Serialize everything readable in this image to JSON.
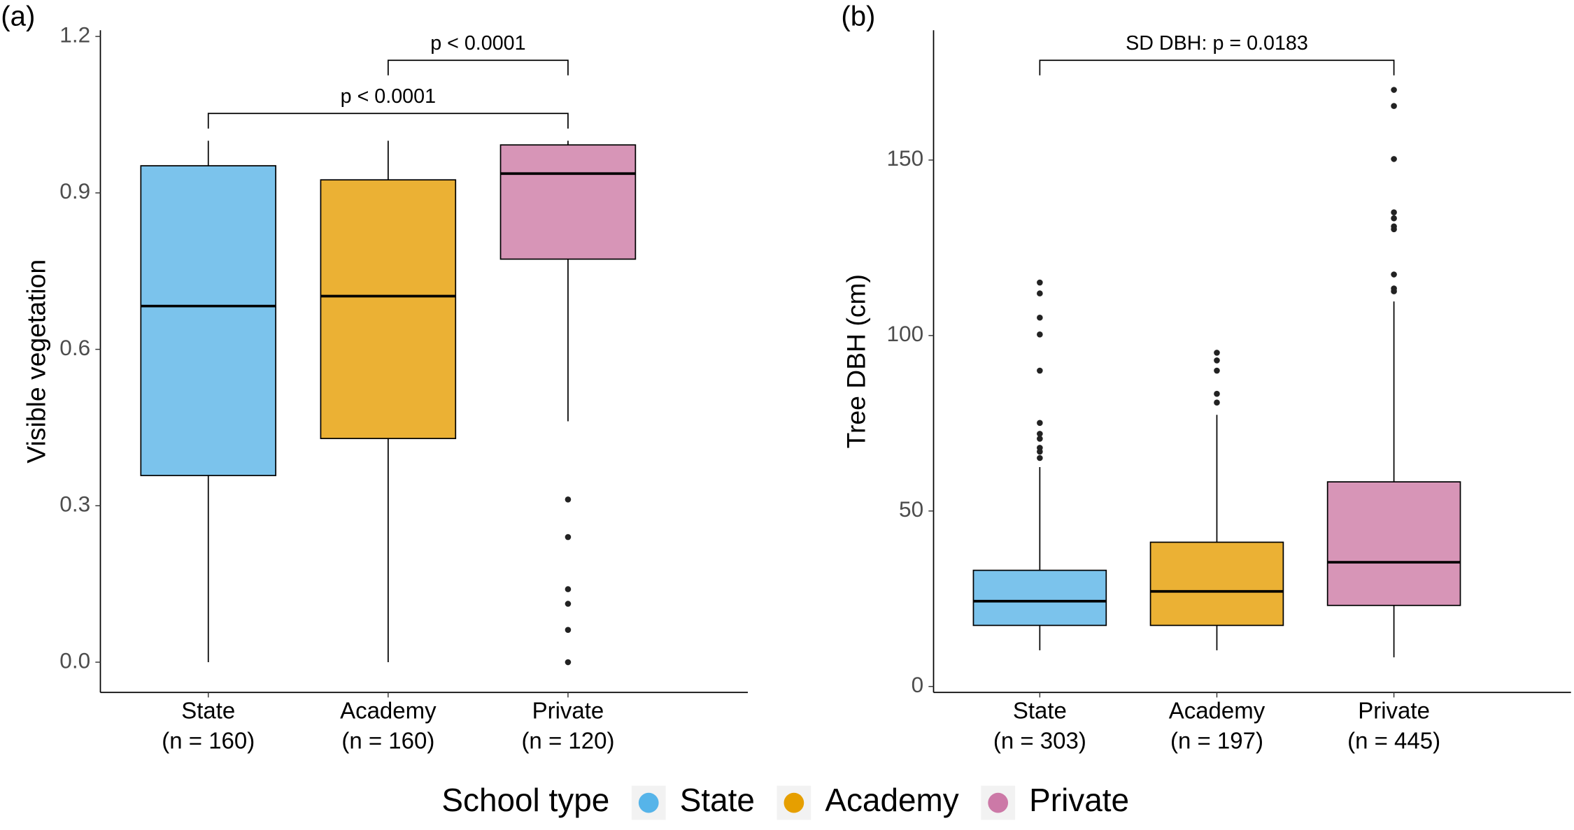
{
  "chart_data": [
    {
      "type": "box",
      "panel_label": "(a)",
      "ylabel": "Visible vegetation",
      "categories": [
        "State",
        "Academy",
        "Private"
      ],
      "n_labels": [
        "(n = 160)",
        "(n = 160)",
        "(n = 120)"
      ],
      "colors": [
        "#7bc3ec",
        "#ebb134",
        "#d795b7"
      ],
      "boxes": [
        {
          "min": 0,
          "q1": 0.358,
          "median": 0.683,
          "q3": 0.952,
          "max": 1.0,
          "outliers": []
        },
        {
          "min": 0,
          "q1": 0.429,
          "median": 0.702,
          "q3": 0.925,
          "max": 1.0,
          "outliers": []
        },
        {
          "min": 0.462,
          "q1": 0.773,
          "median": 0.937,
          "q3": 0.992,
          "max": 1.0,
          "outliers": [
            0.312,
            0.24,
            0.14,
            0.112,
            0.062,
            0
          ]
        }
      ],
      "ylim": [
        -0.058,
        1.212
      ],
      "yticks": [
        {
          "value": 0,
          "label": "0.0"
        },
        0.3,
        0.6,
        0.9,
        1.2
      ],
      "annotations": [
        {
          "label": "p < 0.0001",
          "groups": [
            1,
            2
          ]
        },
        {
          "label": "p < 0.0001",
          "groups": [
            0,
            2
          ]
        }
      ]
    },
    {
      "type": "box",
      "panel_label": "(b)",
      "ylabel": "Tree DBH (cm)",
      "categories": [
        "State",
        "Academy",
        "Private"
      ],
      "n_labels": [
        "(n = 303)",
        "(n = 197)",
        "(n = 445)"
      ],
      "colors": [
        "#7bc3ec",
        "#ebb134",
        "#d795b7"
      ],
      "boxes": [
        {
          "min": 10.3,
          "q1": 17.4,
          "median": 24.3,
          "q3": 33.1,
          "max": 62.5,
          "outliers": [
            65.1,
            66.9,
            68,
            70.6,
            72,
            75.1,
            90,
            100.3,
            105.1,
            112,
            115.1
          ]
        },
        {
          "min": 10.3,
          "q1": 17.4,
          "median": 27.1,
          "q3": 41.1,
          "max": 77.4,
          "outliers": [
            80.9,
            83.4,
            90,
            92.9,
            95.1
          ]
        },
        {
          "min": 8.3,
          "q1": 23.1,
          "median": 35.4,
          "q3": 58.3,
          "max": 109.7,
          "outliers": [
            112.6,
            113.4,
            117.4,
            130.3,
            131.1,
            133.4,
            135.1,
            150.3,
            165.4,
            170
          ]
        }
      ],
      "ylim": [
        -1.7,
        187
      ],
      "yticks": [
        0,
        50,
        100,
        150
      ],
      "annotations": [
        {
          "label": "SD DBH: p = 0.0183",
          "groups": [
            0,
            2
          ]
        }
      ]
    }
  ],
  "legend": {
    "title": "School type",
    "items": [
      {
        "name": "State",
        "color": "#56b4e9"
      },
      {
        "name": "Academy",
        "color": "#e69f00"
      },
      {
        "name": "Private",
        "color": "#cc79a7"
      }
    ]
  }
}
